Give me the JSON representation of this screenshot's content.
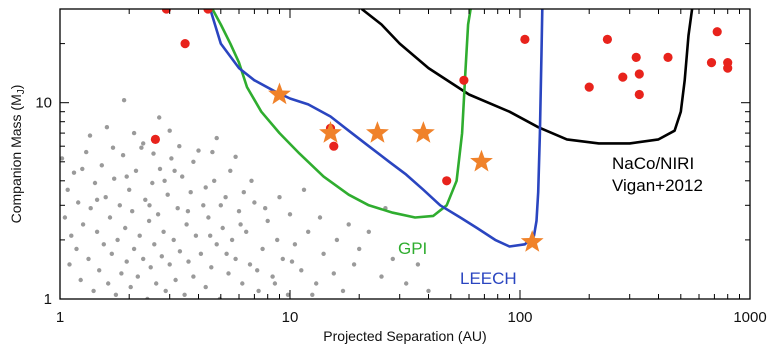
{
  "chart_data": {
    "type": "scatter",
    "xlabel": "Projected Separation (AU)",
    "ylabel": "Companion Mass (M",
    "ylabel_sub": "J",
    "ylabel_close": ")",
    "x_scale": "log",
    "y_scale": "log",
    "xlim": [
      1,
      1000
    ],
    "ylim": [
      1,
      30
    ],
    "x_ticks": [
      {
        "value": 1,
        "label": "1"
      },
      {
        "value": 10,
        "label": "10"
      },
      {
        "value": 100,
        "label": "100"
      },
      {
        "value": 1000,
        "label": "1000"
      }
    ],
    "y_ticks": [
      {
        "value": 1,
        "label": "1"
      },
      {
        "value": 10,
        "label": "10"
      }
    ],
    "colors": {
      "naco": "#000000",
      "gpi": "#2fad2f",
      "leech": "#2a45c0",
      "known": "#e8231c",
      "stars": "#f0822a",
      "gray": "#9a9a9a"
    },
    "annotations": {
      "naco_line1": "NaCo/NIRI",
      "naco_line2": "Vigan+2012",
      "gpi": "GPI",
      "leech": "LEECH"
    },
    "curves": [
      {
        "id": "naco",
        "x": [
          20.5,
          25,
          30,
          40,
          60,
          90,
          120,
          160,
          220,
          300,
          400,
          470,
          500,
          520,
          540,
          560
        ],
        "y": [
          30,
          25,
          20,
          15,
          11,
          9,
          7.5,
          6.5,
          6.2,
          6.2,
          6.5,
          7.2,
          9,
          13,
          22,
          30
        ]
      },
      {
        "id": "gpi",
        "x": [
          4.6,
          5,
          5.5,
          6,
          6.5,
          7.5,
          9,
          11,
          14,
          18,
          22,
          28,
          35,
          42,
          48,
          53,
          56,
          58,
          59.5,
          61
        ],
        "y": [
          30,
          25,
          20,
          16,
          12,
          9,
          7,
          5.5,
          4.2,
          3.4,
          3.0,
          2.75,
          2.6,
          2.65,
          3.0,
          4.0,
          7,
          15,
          25,
          30
        ]
      },
      {
        "id": "leech",
        "x": [
          4.5,
          5,
          6,
          7,
          8.5,
          10,
          12,
          15,
          18,
          22,
          27,
          32,
          38,
          45,
          55,
          65,
          78,
          90,
          105,
          115,
          118,
          120,
          122,
          124,
          125
        ],
        "y": [
          30,
          20,
          15,
          13,
          11.5,
          10.5,
          9.8,
          8.5,
          7.2,
          6.0,
          5.0,
          4.3,
          3.6,
          3.0,
          2.6,
          2.3,
          2.0,
          1.85,
          1.9,
          2.1,
          2.5,
          3.5,
          7,
          18,
          30
        ]
      }
    ],
    "stars": [
      {
        "x": 9,
        "y": 11
      },
      {
        "x": 15,
        "y": 7
      },
      {
        "x": 24,
        "y": 7
      },
      {
        "x": 38,
        "y": 7
      },
      {
        "x": 68,
        "y": 5
      },
      {
        "x": 113,
        "y": 1.95
      }
    ],
    "known_companions": [
      {
        "x": 2.6,
        "y": 6.5
      },
      {
        "x": 2.9,
        "y": 30
      },
      {
        "x": 3.5,
        "y": 20
      },
      {
        "x": 4.4,
        "y": 30
      },
      {
        "x": 15,
        "y": 7.4
      },
      {
        "x": 15.5,
        "y": 6
      },
      {
        "x": 48,
        "y": 4
      },
      {
        "x": 57,
        "y": 13
      },
      {
        "x": 105,
        "y": 21
      },
      {
        "x": 200,
        "y": 12
      },
      {
        "x": 240,
        "y": 21
      },
      {
        "x": 280,
        "y": 13.5
      },
      {
        "x": 320,
        "y": 17
      },
      {
        "x": 330,
        "y": 14
      },
      {
        "x": 330,
        "y": 11
      },
      {
        "x": 440,
        "y": 17
      },
      {
        "x": 680,
        "y": 16
      },
      {
        "x": 720,
        "y": 23
      },
      {
        "x": 800,
        "y": 16
      },
      {
        "x": 800,
        "y": 15
      }
    ],
    "field_objects": [
      {
        "x": 1.02,
        "y": 5.2
      },
      {
        "x": 1.05,
        "y": 2.6
      },
      {
        "x": 1.08,
        "y": 3.6
      },
      {
        "x": 1.1,
        "y": 1.5
      },
      {
        "x": 1.12,
        "y": 2.1
      },
      {
        "x": 1.15,
        "y": 4.4
      },
      {
        "x": 1.18,
        "y": 1.8
      },
      {
        "x": 1.2,
        "y": 3.1
      },
      {
        "x": 1.23,
        "y": 1.25
      },
      {
        "x": 1.26,
        "y": 2.4
      },
      {
        "x": 1.3,
        "y": 5.6
      },
      {
        "x": 1.33,
        "y": 1.6
      },
      {
        "x": 1.36,
        "y": 2.9
      },
      {
        "x": 1.4,
        "y": 1.1
      },
      {
        "x": 1.42,
        "y": 3.9
      },
      {
        "x": 1.45,
        "y": 2.2
      },
      {
        "x": 1.48,
        "y": 1.4
      },
      {
        "x": 1.52,
        "y": 4.8
      },
      {
        "x": 1.55,
        "y": 1.9
      },
      {
        "x": 1.58,
        "y": 3.3
      },
      {
        "x": 1.62,
        "y": 1.2
      },
      {
        "x": 1.65,
        "y": 2.6
      },
      {
        "x": 1.68,
        "y": 1.7
      },
      {
        "x": 1.72,
        "y": 4.1
      },
      {
        "x": 1.75,
        "y": 1.05
      },
      {
        "x": 1.78,
        "y": 2.0
      },
      {
        "x": 1.82,
        "y": 3.0
      },
      {
        "x": 1.85,
        "y": 1.35
      },
      {
        "x": 1.88,
        "y": 5.4
      },
      {
        "x": 1.92,
        "y": 2.3
      },
      {
        "x": 1.95,
        "y": 1.55
      },
      {
        "x": 2.0,
        "y": 3.6
      },
      {
        "x": 2.03,
        "y": 1.15
      },
      {
        "x": 2.06,
        "y": 2.8
      },
      {
        "x": 2.1,
        "y": 1.8
      },
      {
        "x": 2.14,
        "y": 4.5
      },
      {
        "x": 2.18,
        "y": 1.3
      },
      {
        "x": 2.22,
        "y": 2.1
      },
      {
        "x": 2.26,
        "y": 5.9
      },
      {
        "x": 2.3,
        "y": 1.6
      },
      {
        "x": 2.35,
        "y": 3.2
      },
      {
        "x": 2.4,
        "y": 1.0
      },
      {
        "x": 2.44,
        "y": 2.5
      },
      {
        "x": 2.48,
        "y": 1.45
      },
      {
        "x": 2.52,
        "y": 3.9
      },
      {
        "x": 2.57,
        "y": 1.9
      },
      {
        "x": 2.62,
        "y": 1.2
      },
      {
        "x": 2.67,
        "y": 2.7
      },
      {
        "x": 2.72,
        "y": 4.6
      },
      {
        "x": 2.77,
        "y": 1.65
      },
      {
        "x": 2.82,
        "y": 2.2
      },
      {
        "x": 2.88,
        "y": 1.1
      },
      {
        "x": 2.94,
        "y": 3.4
      },
      {
        "x": 3.0,
        "y": 1.5
      },
      {
        "x": 3.05,
        "y": 5.2
      },
      {
        "x": 3.12,
        "y": 2.0
      },
      {
        "x": 3.18,
        "y": 1.25
      },
      {
        "x": 3.25,
        "y": 2.9
      },
      {
        "x": 3.32,
        "y": 1.75
      },
      {
        "x": 3.4,
        "y": 4.2
      },
      {
        "x": 3.48,
        "y": 1.05
      },
      {
        "x": 3.55,
        "y": 2.4
      },
      {
        "x": 3.62,
        "y": 1.55
      },
      {
        "x": 3.7,
        "y": 3.5
      },
      {
        "x": 3.8,
        "y": 1.3
      },
      {
        "x": 3.9,
        "y": 2.1
      },
      {
        "x": 4.0,
        "y": 5.7
      },
      {
        "x": 4.1,
        "y": 1.7
      },
      {
        "x": 4.2,
        "y": 3.0
      },
      {
        "x": 4.3,
        "y": 1.15
      },
      {
        "x": 4.42,
        "y": 2.6
      },
      {
        "x": 4.55,
        "y": 1.45
      },
      {
        "x": 4.68,
        "y": 4.0
      },
      {
        "x": 4.8,
        "y": 1.9
      },
      {
        "x": 4.95,
        "y": 1.0
      },
      {
        "x": 5.1,
        "y": 2.3
      },
      {
        "x": 5.25,
        "y": 3.3
      },
      {
        "x": 5.4,
        "y": 1.35
      },
      {
        "x": 5.6,
        "y": 2.0
      },
      {
        "x": 5.8,
        "y": 1.6
      },
      {
        "x": 6.0,
        "y": 2.8
      },
      {
        "x": 6.2,
        "y": 1.2
      },
      {
        "x": 6.45,
        "y": 2.2
      },
      {
        "x": 6.7,
        "y": 1.5
      },
      {
        "x": 7.0,
        "y": 3.1
      },
      {
        "x": 7.3,
        "y": 1.1
      },
      {
        "x": 7.6,
        "y": 1.8
      },
      {
        "x": 8.0,
        "y": 2.5
      },
      {
        "x": 8.4,
        "y": 1.3
      },
      {
        "x": 8.8,
        "y": 2.0
      },
      {
        "x": 9.3,
        "y": 1.6
      },
      {
        "x": 9.8,
        "y": 1.05
      },
      {
        "x": 10.5,
        "y": 1.9
      },
      {
        "x": 11.2,
        "y": 1.4
      },
      {
        "x": 12.0,
        "y": 2.2
      },
      {
        "x": 13.0,
        "y": 1.2
      },
      {
        "x": 14.0,
        "y": 1.7
      },
      {
        "x": 15.5,
        "y": 1.35
      },
      {
        "x": 17.0,
        "y": 1.1
      },
      {
        "x": 19.0,
        "y": 1.5
      },
      {
        "x": 1.6,
        "y": 7.5
      },
      {
        "x": 1.9,
        "y": 10.3
      },
      {
        "x": 2.3,
        "y": 6.2
      },
      {
        "x": 2.1,
        "y": 7.0
      },
      {
        "x": 1.35,
        "y": 6.8
      },
      {
        "x": 3.3,
        "y": 6.0
      },
      {
        "x": 3.8,
        "y": 5.0
      },
      {
        "x": 4.6,
        "y": 5.6
      },
      {
        "x": 5.5,
        "y": 4.5
      },
      {
        "x": 6.8,
        "y": 4.0
      },
      {
        "x": 1.25,
        "y": 4.6
      },
      {
        "x": 1.7,
        "y": 5.9
      },
      {
        "x": 2.55,
        "y": 5.5
      },
      {
        "x": 3.15,
        "y": 4.5
      },
      {
        "x": 4.3,
        "y": 3.7
      },
      {
        "x": 5.0,
        "y": 3.0
      },
      {
        "x": 6.3,
        "y": 3.5
      },
      {
        "x": 7.8,
        "y": 2.9
      },
      {
        "x": 9.0,
        "y": 3.3
      },
      {
        "x": 10.0,
        "y": 2.7
      },
      {
        "x": 11.5,
        "y": 3.6
      },
      {
        "x": 13.5,
        "y": 2.6
      },
      {
        "x": 16.0,
        "y": 2.0
      },
      {
        "x": 18.0,
        "y": 2.4
      },
      {
        "x": 20.0,
        "y": 1.8
      },
      {
        "x": 22.0,
        "y": 2.2
      },
      {
        "x": 25.0,
        "y": 1.3
      },
      {
        "x": 28.0,
        "y": 1.6
      },
      {
        "x": 32.0,
        "y": 1.2
      },
      {
        "x": 36.0,
        "y": 1.5
      },
      {
        "x": 40.0,
        "y": 1.1
      },
      {
        "x": 26.0,
        "y": 2.9
      },
      {
        "x": 1.45,
        "y": 3.2
      },
      {
        "x": 1.95,
        "y": 4.2
      },
      {
        "x": 2.45,
        "y": 3.0
      },
      {
        "x": 2.85,
        "y": 4.0
      },
      {
        "x": 3.6,
        "y": 2.8
      },
      {
        "x": 4.5,
        "y": 2.1
      },
      {
        "x": 5.3,
        "y": 1.7
      },
      {
        "x": 6.1,
        "y": 2.4
      },
      {
        "x": 7.2,
        "y": 1.4
      },
      {
        "x": 8.6,
        "y": 1.2
      },
      {
        "x": 10.2,
        "y": 1.55
      },
      {
        "x": 12.5,
        "y": 1.05
      },
      {
        "x": 3.0,
        "y": 7.2
      },
      {
        "x": 2.7,
        "y": 8.4
      },
      {
        "x": 4.8,
        "y": 6.6
      },
      {
        "x": 5.8,
        "y": 5.3
      }
    ]
  }
}
